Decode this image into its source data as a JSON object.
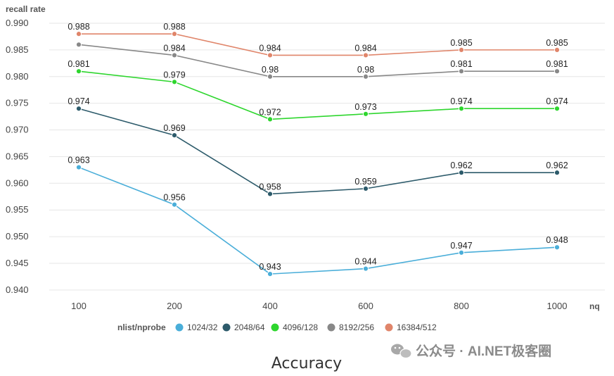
{
  "chart_data": {
    "type": "line",
    "title": "Accuracy",
    "ylabel": "recall rate",
    "xlabel": "nq",
    "legend_title": "nlist/nprobe",
    "legend_position": "bottom",
    "grid": true,
    "categories": [
      "100",
      "200",
      "400",
      "600",
      "800",
      "1000"
    ],
    "ylim": [
      0.938,
      0.99
    ],
    "yticks": [
      "0.990",
      "0.985",
      "0.980",
      "0.975",
      "0.970",
      "0.965",
      "0.960",
      "0.955",
      "0.950",
      "0.945",
      "0.940"
    ],
    "series": [
      {
        "name": "1024/32",
        "color": "#4aaed9",
        "values": [
          0.963,
          0.956,
          0.943,
          0.944,
          0.947,
          0.948
        ],
        "labels": [
          "0.963",
          "0.956",
          "0.943",
          "0.944",
          "0.947",
          "0.948"
        ]
      },
      {
        "name": "2048/64",
        "color": "#2d5b6b",
        "values": [
          0.974,
          0.969,
          0.958,
          0.959,
          0.962,
          0.962
        ],
        "labels": [
          "0.974",
          "0.969",
          "0.958",
          "0.959",
          "0.962",
          "0.962"
        ]
      },
      {
        "name": "4096/128",
        "color": "#2ed62e",
        "values": [
          0.981,
          0.979,
          0.972,
          0.973,
          0.974,
          0.974
        ],
        "labels": [
          "0.981",
          "0.979",
          "0.972",
          "0.973",
          "0.974",
          "0.974"
        ]
      },
      {
        "name": "8192/256",
        "color": "#888888",
        "values": [
          0.986,
          0.984,
          0.98,
          0.98,
          0.981,
          0.981
        ],
        "labels": [
          "",
          "0.984",
          "0.98",
          "0.98",
          "0.981",
          "0.981"
        ]
      },
      {
        "name": "16384/512",
        "color": "#e0856a",
        "values": [
          0.988,
          0.988,
          0.984,
          0.984,
          0.985,
          0.985
        ],
        "labels": [
          "0.988",
          "0.988",
          "0.984",
          "0.984",
          "0.985",
          "0.985"
        ]
      }
    ]
  },
  "watermark": {
    "icon": "wechat-icon",
    "text": "公众号 · AI.NET极客圈"
  }
}
